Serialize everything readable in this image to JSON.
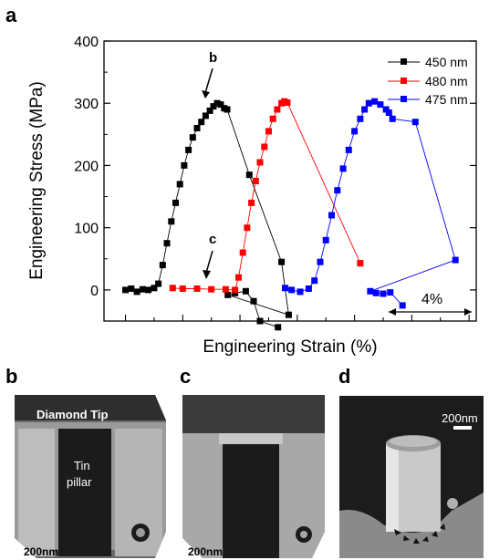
{
  "panels": {
    "a": "a",
    "b": "b",
    "c": "c",
    "d": "d"
  },
  "chart_data": {
    "type": "line",
    "xlabel": "Engineering Strain (%)",
    "ylabel": "Engineering Stress (MPa)",
    "ylim": [
      -50,
      400
    ],
    "yticks": [
      0,
      100,
      200,
      300,
      400
    ],
    "x_ticks_labeled": false,
    "scale_bar_label": "4%",
    "legend_position": "top-right",
    "annotations": [
      {
        "text": "b",
        "x": 13.6,
        "y": 300
      },
      {
        "text": "c",
        "x": 13.6,
        "y": 25
      }
    ],
    "series": [
      {
        "name": "450 nm",
        "color": "#000000",
        "x": [
          0,
          0.8,
          1.6,
          2.4,
          3.2,
          4,
          4.6,
          5.2,
          5.8,
          6.4,
          7.0,
          7.6,
          8.2,
          8.8,
          9.4,
          10.0,
          10.6,
          11.2,
          11.8,
          12.3,
          12.8,
          13.3,
          13.8,
          14.2,
          17.3,
          21.8,
          22.8,
          14.3,
          15.3,
          16.8,
          17.9,
          18.8,
          21.3
        ],
        "y": [
          0,
          2,
          -3,
          1,
          0,
          3,
          10,
          40,
          75,
          110,
          140,
          170,
          200,
          225,
          245,
          260,
          270,
          280,
          288,
          295,
          300,
          298,
          292,
          290,
          185,
          45,
          -40,
          -8,
          -5,
          -2,
          -18,
          -50,
          -60
        ]
      },
      {
        "name": "480 nm",
        "color": "#ff0000",
        "x": [
          6.6,
          8.0,
          10.0,
          12.0,
          14.0,
          15.3,
          15.8,
          16.4,
          17.0,
          17.6,
          18.2,
          18.8,
          19.4,
          20.0,
          20.6,
          21.2,
          21.8,
          22.2,
          22.6,
          32.8
        ],
        "y": [
          3,
          2,
          2,
          1,
          1,
          0,
          20,
          60,
          100,
          140,
          175,
          205,
          230,
          255,
          275,
          290,
          300,
          303,
          301,
          43
        ]
      },
      {
        "name": "475 nm",
        "color": "#0000ff",
        "x": [
          22.3,
          23.2,
          24.4,
          25.6,
          26.4,
          27.2,
          28.0,
          28.8,
          29.6,
          30.4,
          31.2,
          32.0,
          32.8,
          33.4,
          34.0,
          34.8,
          35.6,
          36.4,
          36.8,
          37.3,
          40.5,
          46.1,
          34.2,
          35.0,
          36.0,
          37.0,
          38.7
        ],
        "y": [
          3,
          0,
          -3,
          2,
          15,
          45,
          80,
          120,
          160,
          195,
          225,
          255,
          275,
          290,
          300,
          303,
          298,
          290,
          285,
          275,
          270,
          48,
          -2,
          -5,
          -6,
          -4,
          -25
        ]
      }
    ]
  },
  "images": {
    "b": {
      "tip_label": "Diamond Tip",
      "pillar_label_1": "Tin",
      "pillar_label_2": "pillar",
      "scale_label": "200nm"
    },
    "c": {
      "scale_label": "200nm"
    },
    "d": {
      "scale_label": "200nm"
    }
  }
}
